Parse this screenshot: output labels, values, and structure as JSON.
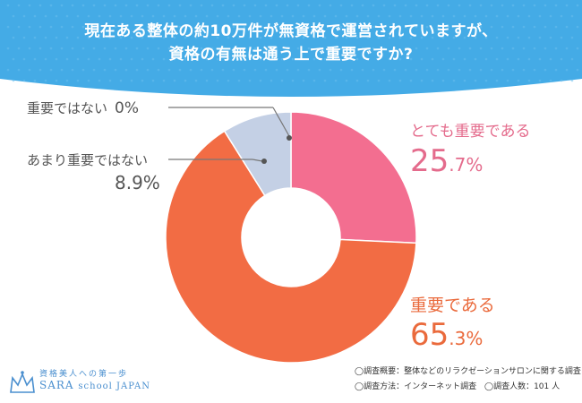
{
  "header": {
    "title_line1": "現在ある整体の約10万件が無資格で運営されていますが、",
    "title_line2": "資格の有無は通う上で重要ですか?"
  },
  "colors": {
    "banner": "#44abe6",
    "very_important": "#f36e90",
    "important": "#f26c44",
    "not_very": "#c4d0e5",
    "not_at_all": "#9aa6b8"
  },
  "chart_data": {
    "type": "pie",
    "donut": true,
    "title": "現在ある整体の約10万件が無資格で運営されていますが、資格の有無は通う上で重要ですか?",
    "unit": "%",
    "slices": [
      {
        "key": "very",
        "label": "とても重要である",
        "value": 25.7,
        "int_part": "25",
        "dec_part": ".7%",
        "color": "#f36e90"
      },
      {
        "key": "important",
        "label": "重要である",
        "value": 65.3,
        "int_part": "65",
        "dec_part": ".3%",
        "color": "#f26c44"
      },
      {
        "key": "not_very",
        "label": "あまり重要ではない",
        "value": 8.9,
        "value_text": "8.9%",
        "color": "#c4d0e5"
      },
      {
        "key": "not_at_all",
        "label": "重要ではない",
        "value": 0,
        "value_text": "0%",
        "color": "#9aa6b8"
      }
    ]
  },
  "logo": {
    "tagline": "資格美人への第一歩",
    "name": "SARA",
    "name_sub": "school JAPAN"
  },
  "footnotes": {
    "survey_overview": "◯調査概要：整体などのリラクゼーションサロンに関する調査",
    "survey_method": "◯調査方法：インターネット調査",
    "respondents": "◯調査人数：101 人"
  }
}
